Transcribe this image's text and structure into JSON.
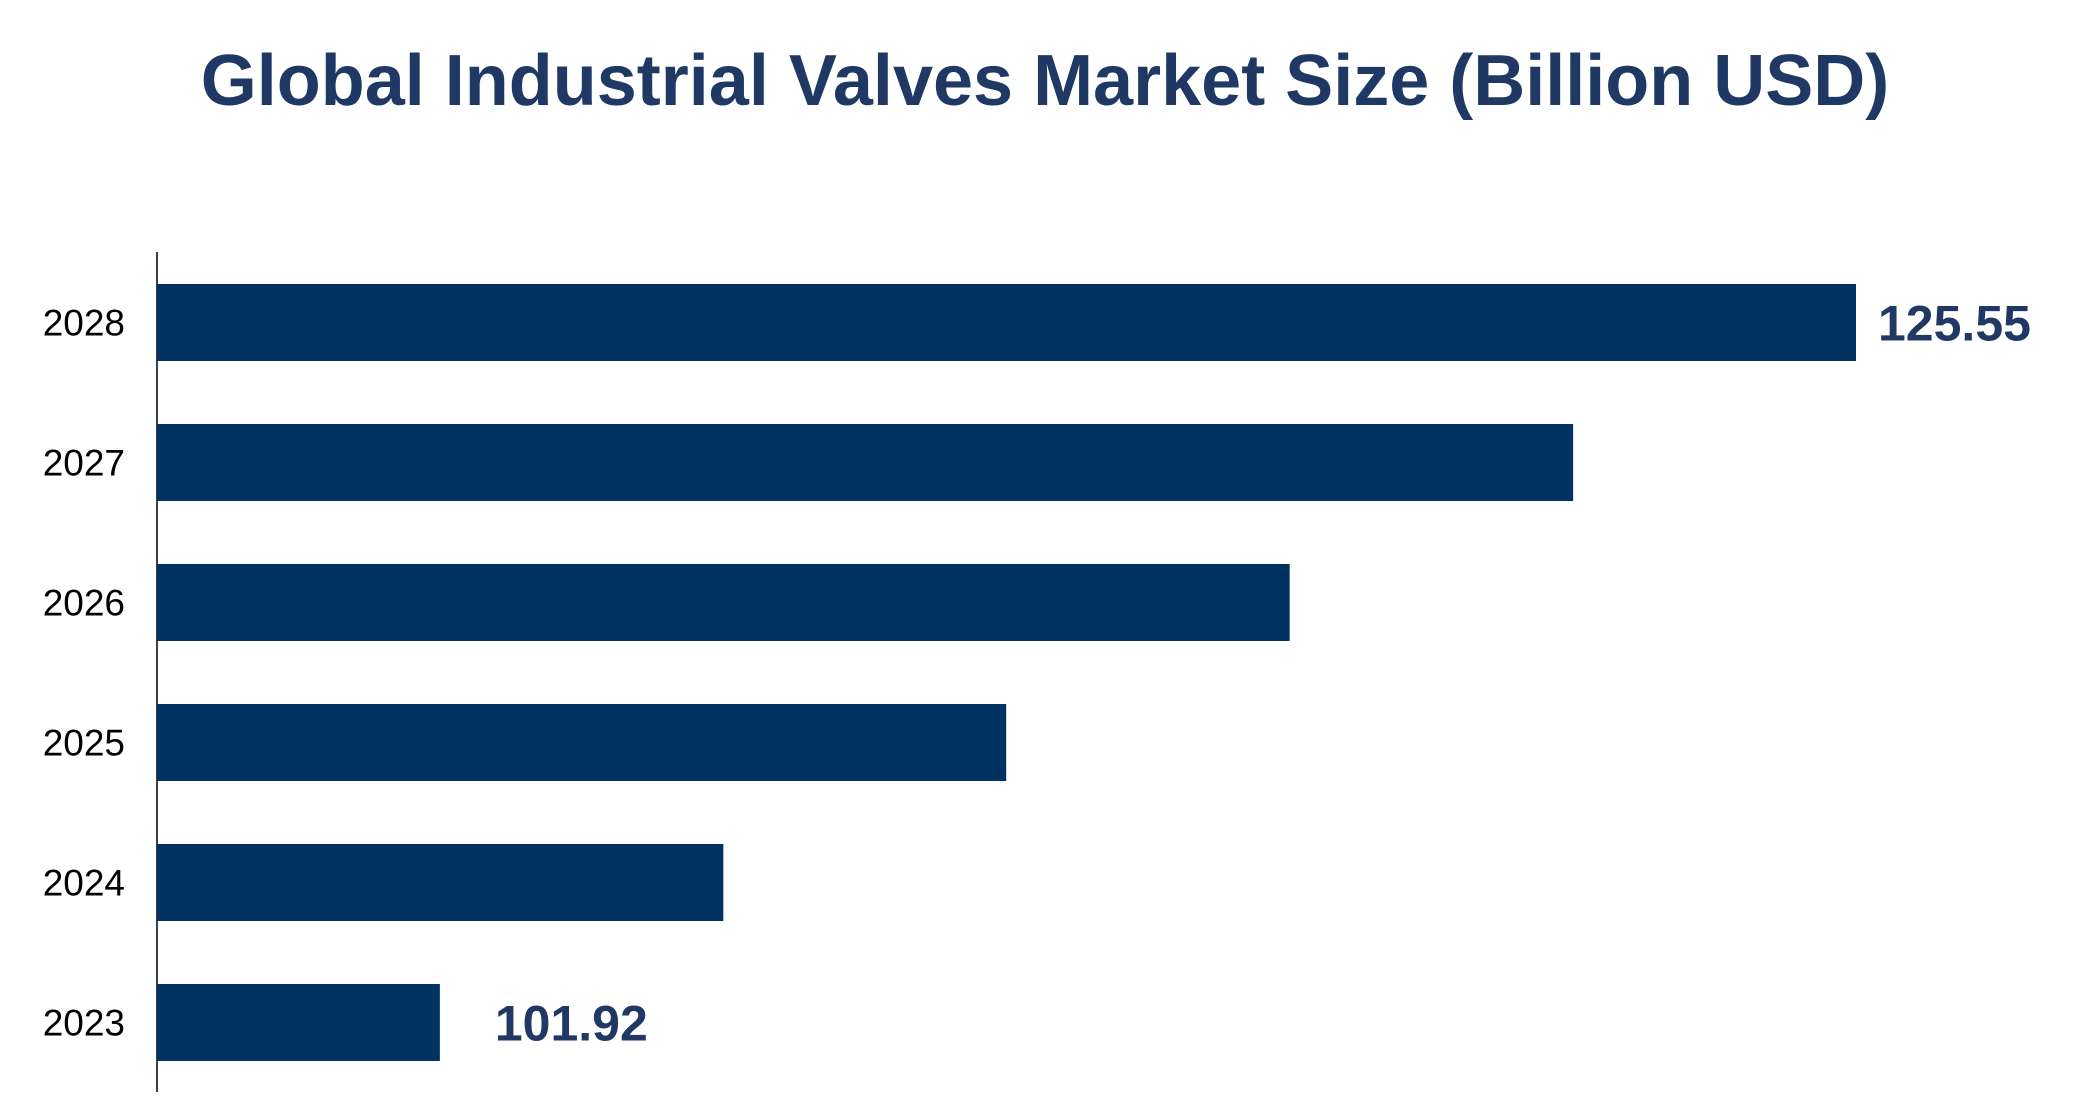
{
  "chart_data": {
    "type": "bar",
    "orientation": "horizontal",
    "title": "Global Industrial Valves Market Size (Billion USD)",
    "categories": [
      "2023",
      "2024",
      "2025",
      "2026",
      "2027",
      "2028"
    ],
    "values": [
      101.92,
      106.65,
      111.37,
      116.1,
      120.83,
      125.55
    ],
    "data_labels": {
      "2023": "101.92",
      "2028": "125.55"
    },
    "xlabel": "",
    "ylabel": "",
    "xlim": [
      97.2,
      127.5
    ],
    "grid": false,
    "legend": "none",
    "bar_color": "#003361",
    "label_color": "#1f3864"
  }
}
